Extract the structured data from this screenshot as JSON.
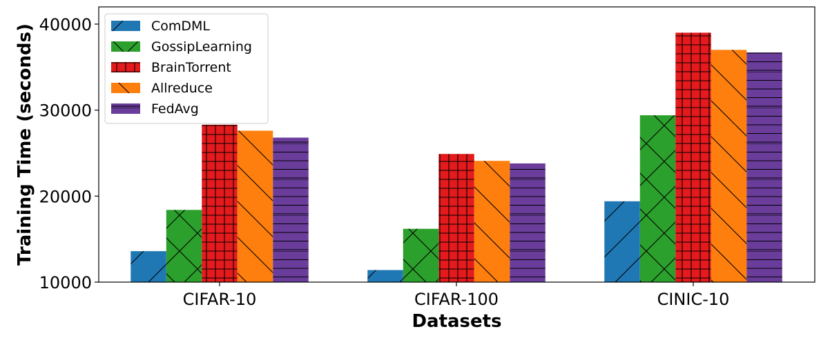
{
  "chart_data": {
    "type": "bar",
    "xlabel": "Datasets",
    "ylabel": "Training Time (seconds)",
    "categories": [
      "CIFAR-10",
      "CIFAR-100",
      "CINIC-10"
    ],
    "ylim": [
      10000,
      42000
    ],
    "yticks": [
      10000,
      20000,
      30000,
      40000
    ],
    "grid": false,
    "legend_position": "top-left",
    "series": [
      {
        "name": "ComDML",
        "values": [
          13600,
          11400,
          19400
        ],
        "color": "#1f77b4",
        "hatch": "diagonal"
      },
      {
        "name": "GossipLearning",
        "values": [
          18400,
          16200,
          29400
        ],
        "color": "#2ca02c",
        "hatch": "cross-diagonal"
      },
      {
        "name": "BrainTorrent",
        "values": [
          28300,
          24900,
          39000
        ],
        "color": "#e41a1c",
        "hatch": "grid"
      },
      {
        "name": "Allreduce",
        "values": [
          27600,
          24100,
          37000
        ],
        "color": "#ff7f0e",
        "hatch": "back-diagonal"
      },
      {
        "name": "FedAvg",
        "values": [
          26800,
          23800,
          36700
        ],
        "color": "#6a3d9a",
        "hatch": "horizontal"
      }
    ]
  }
}
